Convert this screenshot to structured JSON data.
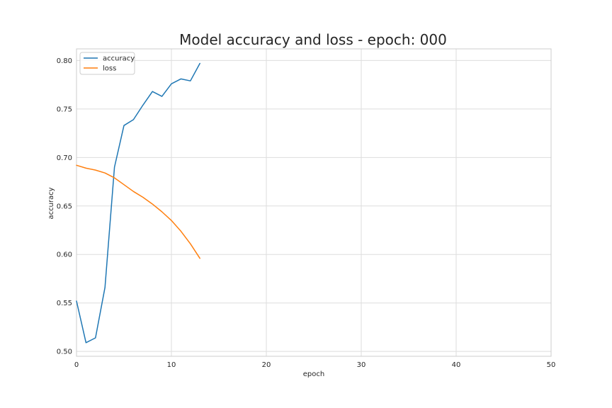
{
  "chart_data": {
    "type": "line",
    "title": "Model accuracy and loss - epoch: 000",
    "xlabel": "epoch",
    "ylabel": "accuracy",
    "xlim": [
      0,
      50
    ],
    "ylim": [
      0.495,
      0.812
    ],
    "xticks": [
      0,
      10,
      20,
      30,
      40,
      50
    ],
    "yticks": [
      0.5,
      0.55,
      0.6,
      0.65,
      0.7,
      0.75,
      0.8
    ],
    "grid": true,
    "legend_position": "top-left",
    "series": [
      {
        "name": "accuracy",
        "color": "#1f77b4",
        "x": [
          0,
          1,
          2,
          3,
          4,
          5,
          6,
          7,
          8,
          9,
          10,
          11,
          12,
          13
        ],
        "values": [
          0.552,
          0.509,
          0.514,
          0.566,
          0.69,
          0.733,
          0.739,
          0.754,
          0.768,
          0.763,
          0.776,
          0.781,
          0.779,
          0.797
        ]
      },
      {
        "name": "loss",
        "color": "#ff7f0e",
        "x": [
          0,
          1,
          2,
          3,
          4,
          5,
          6,
          7,
          8,
          9,
          10,
          11,
          12,
          13
        ],
        "values": [
          0.692,
          0.689,
          0.687,
          0.684,
          0.679,
          0.672,
          0.665,
          0.659,
          0.652,
          0.644,
          0.635,
          0.624,
          0.611,
          0.596
        ]
      }
    ]
  }
}
